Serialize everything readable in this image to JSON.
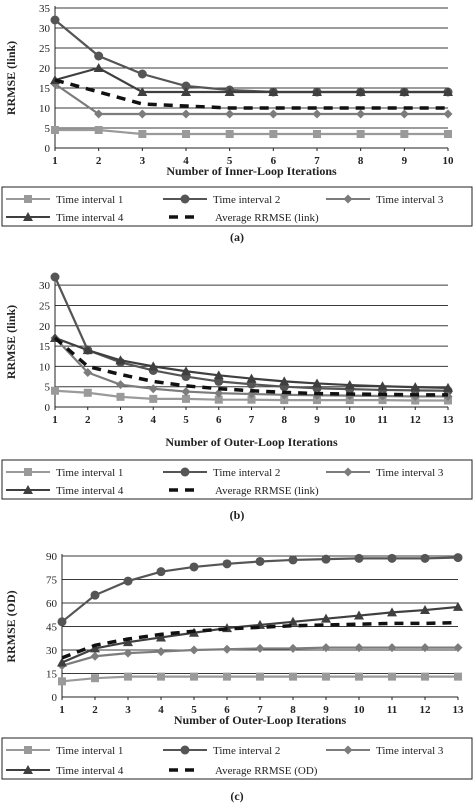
{
  "chart_data": [
    {
      "type": "line",
      "caption": "(a)",
      "xlabel": "Number of Inner-Loop Iterations",
      "ylabel": "RRMSE (link)",
      "x": [
        1,
        2,
        3,
        4,
        5,
        6,
        7,
        8,
        9,
        10
      ],
      "xlim": [
        1,
        10
      ],
      "ylim": [
        0,
        35
      ],
      "yticks": [
        0,
        5,
        10,
        15,
        20,
        25,
        30,
        35
      ],
      "grid": true,
      "legend_position": "bottom",
      "series": [
        {
          "name": "Time interval 1",
          "values": [
            4.5,
            4.5,
            3.5,
            3.5,
            3.5,
            3.5,
            3.5,
            3.5,
            3.5,
            3.5
          ]
        },
        {
          "name": "Time interval 2",
          "values": [
            32,
            23,
            18.5,
            15.5,
            14.5,
            14,
            14,
            14,
            14,
            14
          ]
        },
        {
          "name": "Time interval 3",
          "values": [
            16,
            8.5,
            8.5,
            8.5,
            8.5,
            8.5,
            8.5,
            8.5,
            8.5,
            8.5
          ]
        },
        {
          "name": "Time interval 4",
          "values": [
            17,
            20,
            14,
            14,
            14,
            14,
            14,
            14,
            14,
            14
          ]
        },
        {
          "name": "Average RRMSE (link)",
          "values": [
            17,
            14,
            11,
            10.5,
            10,
            10,
            10,
            10,
            10,
            10
          ]
        }
      ]
    },
    {
      "type": "line",
      "caption": "(b)",
      "xlabel": "Number of Outer-Loop Iterations",
      "ylabel": "RRMSE (link)",
      "x": [
        1,
        2,
        3,
        4,
        5,
        6,
        7,
        8,
        9,
        10,
        11,
        12,
        13
      ],
      "xlim": [
        1,
        13
      ],
      "ylim": [
        0,
        32
      ],
      "yticks": [
        0,
        5,
        10,
        15,
        20,
        25,
        30
      ],
      "grid": true,
      "legend_position": "bottom",
      "series": [
        {
          "name": "Time interval 1",
          "values": [
            4,
            3.5,
            2.5,
            2,
            2,
            1.8,
            1.8,
            1.7,
            1.7,
            1.7,
            1.7,
            1.6,
            1.6
          ]
        },
        {
          "name": "Time interval 2",
          "values": [
            32,
            14,
            11,
            9,
            7.5,
            6.3,
            5.6,
            5,
            4.6,
            4.4,
            4.2,
            4.1,
            4
          ]
        },
        {
          "name": "Time interval 3",
          "values": [
            17,
            8.5,
            5.5,
            4.5,
            3.8,
            3.4,
            3.2,
            3,
            2.9,
            2.8,
            2.7,
            2.6,
            2.6
          ]
        },
        {
          "name": "Time interval 4",
          "values": [
            17,
            14,
            11.5,
            10,
            8.8,
            7.8,
            7,
            6.3,
            5.8,
            5.4,
            5.1,
            4.9,
            4.7
          ]
        },
        {
          "name": "Average RRMSE (link)",
          "values": [
            17,
            10,
            8,
            6.3,
            5.2,
            4.5,
            4,
            3.6,
            3.3,
            3.2,
            3.1,
            3,
            3
          ]
        }
      ]
    },
    {
      "type": "line",
      "caption": "(c)",
      "xlabel": "Number of Outer-Loop Iterations",
      "ylabel": "RRMSE (OD)",
      "x": [
        1,
        2,
        3,
        4,
        5,
        6,
        7,
        8,
        9,
        10,
        11,
        12,
        13
      ],
      "xlim": [
        1,
        13
      ],
      "ylim": [
        0,
        90
      ],
      "yticks": [
        0,
        15,
        30,
        45,
        60,
        75,
        90
      ],
      "grid": true,
      "legend_position": "bottom",
      "series": [
        {
          "name": "Time interval 1",
          "values": [
            10,
            12,
            13,
            13,
            13,
            13,
            13,
            13,
            13,
            13,
            13,
            13,
            13
          ]
        },
        {
          "name": "Time interval 2",
          "values": [
            48,
            65,
            74,
            80,
            83,
            85,
            86.5,
            87.5,
            88,
            88.5,
            88.5,
            88.5,
            89
          ]
        },
        {
          "name": "Time interval 3",
          "values": [
            20,
            26,
            28,
            29,
            30,
            30.5,
            31,
            31,
            31.5,
            31.5,
            31.5,
            31.5,
            31.5
          ]
        },
        {
          "name": "Time interval 4",
          "values": [
            22,
            31,
            35,
            38,
            41,
            44,
            46,
            48,
            50,
            52,
            54,
            55.5,
            57.5
          ]
        },
        {
          "name": "Average RRMSE (OD)",
          "values": [
            25,
            33,
            37,
            40,
            42,
            43.5,
            44.5,
            45.5,
            46,
            46.5,
            47,
            47,
            47.5
          ]
        }
      ]
    }
  ],
  "colors": {
    "Time interval 1": "#9a9a9a",
    "Time interval 2": "#555555",
    "Time interval 3": "#7c7c7c",
    "Time interval 4": "#3f3f3f",
    "Average": "#111111"
  },
  "markers": [
    "square",
    "circle",
    "diamond",
    "triangle",
    "dash"
  ]
}
